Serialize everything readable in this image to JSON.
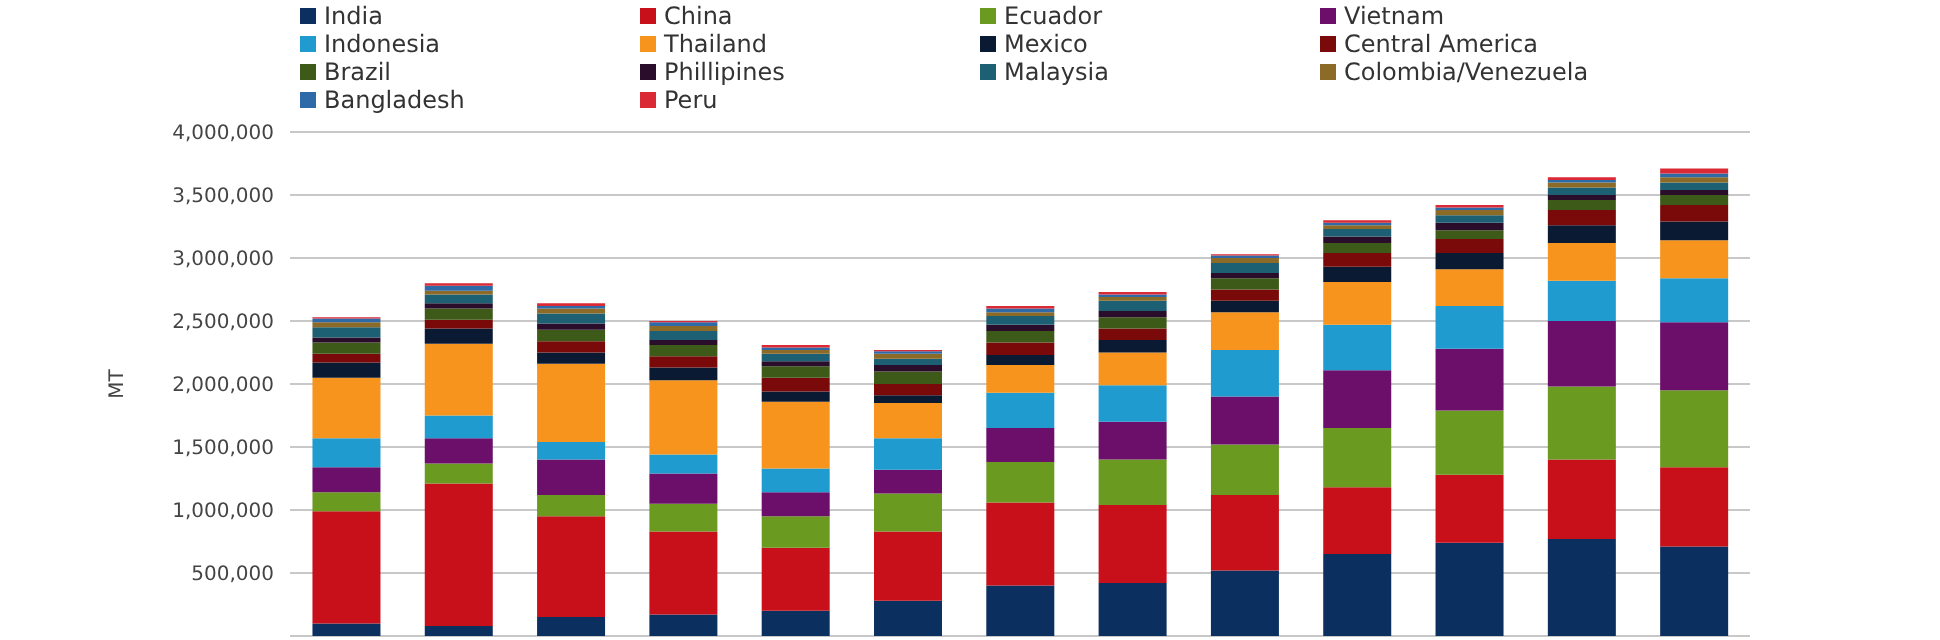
{
  "chart_data": {
    "type": "bar",
    "stacked": true,
    "ylabel": "MT",
    "categories": [
      null,
      null,
      null,
      null,
      null,
      null,
      null,
      null,
      null,
      null,
      null,
      null,
      null
    ],
    "ylim": [
      0,
      4000000
    ],
    "yticks": [
      {
        "value": 500000,
        "label": "500,000"
      },
      {
        "value": 1000000,
        "label": "1,000,000"
      },
      {
        "value": 1500000,
        "label": "1,500,000"
      },
      {
        "value": 2000000,
        "label": "2,000,000"
      },
      {
        "value": 2500000,
        "label": "2,500,000"
      },
      {
        "value": 3000000,
        "label": "3,000,000"
      },
      {
        "value": 3500000,
        "label": "3,500,000"
      },
      {
        "value": 4000000,
        "label": "4,000,000"
      }
    ],
    "grid": "y",
    "legend": "top",
    "series": [
      {
        "name": "India",
        "color": "#0b2f5e",
        "values": [
          100000,
          80000,
          150000,
          170000,
          200000,
          280000,
          400000,
          420000,
          520000,
          650000,
          740000,
          770000,
          710000
        ]
      },
      {
        "name": "China",
        "color": "#c8101a",
        "values": [
          890000,
          1130000,
          800000,
          660000,
          500000,
          550000,
          660000,
          620000,
          600000,
          530000,
          540000,
          630000,
          630000
        ]
      },
      {
        "name": "Ecuador",
        "color": "#6a9a1f",
        "values": [
          150000,
          160000,
          170000,
          220000,
          250000,
          300000,
          320000,
          360000,
          400000,
          470000,
          510000,
          580000,
          610000
        ]
      },
      {
        "name": "Vietnam",
        "color": "#6b0f6b",
        "values": [
          200000,
          200000,
          280000,
          240000,
          190000,
          190000,
          270000,
          300000,
          380000,
          460000,
          490000,
          520000,
          540000
        ]
      },
      {
        "name": "Indonesia",
        "color": "#1f9bd0",
        "values": [
          230000,
          180000,
          140000,
          150000,
          190000,
          250000,
          280000,
          290000,
          370000,
          360000,
          340000,
          320000,
          350000
        ]
      },
      {
        "name": "Thailand",
        "color": "#f7941d",
        "values": [
          480000,
          570000,
          620000,
          590000,
          530000,
          280000,
          220000,
          260000,
          300000,
          340000,
          290000,
          300000,
          300000
        ]
      },
      {
        "name": "Mexico",
        "color": "#0a1a33",
        "values": [
          120000,
          120000,
          90000,
          100000,
          80000,
          60000,
          80000,
          100000,
          90000,
          120000,
          130000,
          140000,
          150000
        ]
      },
      {
        "name": "Central America",
        "color": "#7a0a0a",
        "values": [
          70000,
          70000,
          90000,
          90000,
          110000,
          90000,
          100000,
          90000,
          90000,
          110000,
          110000,
          120000,
          130000
        ]
      },
      {
        "name": "Brazil",
        "color": "#3d5a18",
        "values": [
          90000,
          90000,
          90000,
          90000,
          90000,
          100000,
          90000,
          90000,
          90000,
          80000,
          70000,
          80000,
          80000
        ]
      },
      {
        "name": "Phillipines",
        "color": "#2a0d2a",
        "values": [
          40000,
          40000,
          50000,
          40000,
          40000,
          50000,
          50000,
          50000,
          40000,
          50000,
          60000,
          40000,
          40000
        ]
      },
      {
        "name": "Malaysia",
        "color": "#1d5f73",
        "values": [
          80000,
          70000,
          80000,
          70000,
          60000,
          50000,
          70000,
          80000,
          80000,
          60000,
          60000,
          60000,
          60000
        ]
      },
      {
        "name": "Colombia/Venezuela",
        "color": "#8c6a28",
        "values": [
          40000,
          30000,
          40000,
          40000,
          30000,
          40000,
          30000,
          30000,
          40000,
          30000,
          40000,
          40000,
          40000
        ]
      },
      {
        "name": "Bangladesh",
        "color": "#2f6aa8",
        "values": [
          30000,
          40000,
          20000,
          30000,
          20000,
          20000,
          30000,
          20000,
          20000,
          20000,
          20000,
          20000,
          30000
        ]
      },
      {
        "name": "Peru",
        "color": "#d92a36",
        "values": [
          10000,
          20000,
          20000,
          10000,
          20000,
          10000,
          20000,
          20000,
          10000,
          20000,
          20000,
          20000,
          40000
        ]
      }
    ]
  }
}
